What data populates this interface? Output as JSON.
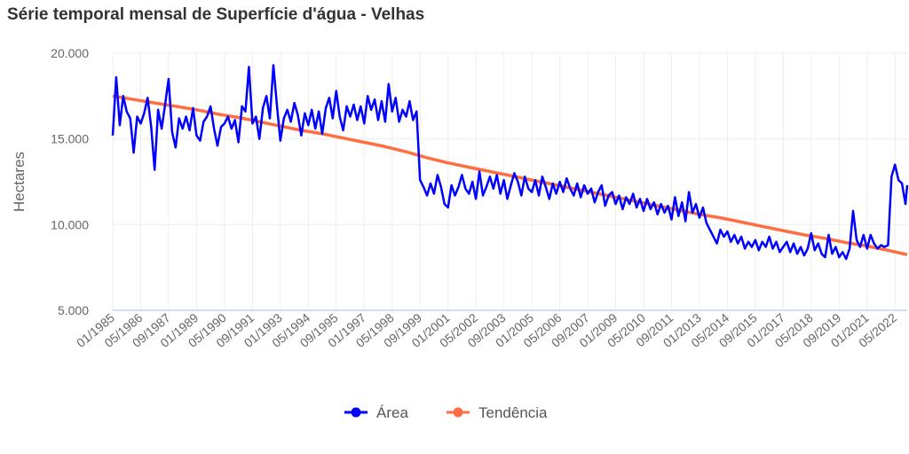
{
  "chart_data": {
    "type": "line",
    "title": "Série temporal mensal de Superfície d'água - Velhas",
    "xlabel": "",
    "ylabel": "Hectares",
    "ylim": [
      5000,
      20000
    ],
    "yticks": [
      {
        "value": 5000,
        "label": "5.000"
      },
      {
        "value": 10000,
        "label": "10.000"
      },
      {
        "value": 15000,
        "label": "15.000"
      },
      {
        "value": 20000,
        "label": "20.000"
      }
    ],
    "x_range": [
      "1985-01",
      "2022-12"
    ],
    "xtick_labels": [
      "01/1985",
      "05/1986",
      "09/1987",
      "01/1989",
      "05/1990",
      "09/1991",
      "01/1993",
      "05/1994",
      "09/1995",
      "01/1997",
      "05/1998",
      "09/1999",
      "01/2001",
      "05/2002",
      "09/2003",
      "01/2005",
      "05/2006",
      "09/2007",
      "01/2009",
      "05/2010",
      "09/2011",
      "01/2013",
      "05/2014",
      "09/2015",
      "01/2017",
      "05/2018",
      "09/2019",
      "01/2021",
      "05/2022"
    ],
    "grid": "vertical",
    "legend_position": "bottom",
    "colors": {
      "area": "#0000ff",
      "trend": "#ff6e40"
    },
    "series": [
      {
        "name": "Área",
        "color": "#0000ff",
        "points": [
          [
            "1985-01",
            15200
          ],
          [
            "1985-03",
            18600
          ],
          [
            "1985-05",
            15800
          ],
          [
            "1985-07",
            17500
          ],
          [
            "1985-09",
            16600
          ],
          [
            "1985-11",
            16200
          ],
          [
            "1986-01",
            14200
          ],
          [
            "1986-03",
            16300
          ],
          [
            "1986-05",
            15900
          ],
          [
            "1986-07",
            16500
          ],
          [
            "1986-09",
            17400
          ],
          [
            "1986-11",
            15700
          ],
          [
            "1987-01",
            13200
          ],
          [
            "1987-03",
            16700
          ],
          [
            "1987-05",
            15600
          ],
          [
            "1987-07",
            17000
          ],
          [
            "1987-09",
            18500
          ],
          [
            "1987-11",
            15400
          ],
          [
            "1988-01",
            14500
          ],
          [
            "1988-03",
            16200
          ],
          [
            "1988-05",
            15600
          ],
          [
            "1988-07",
            16300
          ],
          [
            "1988-09",
            15500
          ],
          [
            "1988-11",
            16800
          ],
          [
            "1989-01",
            15200
          ],
          [
            "1989-03",
            14900
          ],
          [
            "1989-05",
            16000
          ],
          [
            "1989-07",
            16300
          ],
          [
            "1989-09",
            16900
          ],
          [
            "1989-11",
            15600
          ],
          [
            "1990-01",
            14600
          ],
          [
            "1990-03",
            15700
          ],
          [
            "1990-05",
            15900
          ],
          [
            "1990-07",
            16300
          ],
          [
            "1990-09",
            15600
          ],
          [
            "1990-11",
            16100
          ],
          [
            "1991-01",
            14800
          ],
          [
            "1991-03",
            16900
          ],
          [
            "1991-05",
            16600
          ],
          [
            "1991-07",
            19200
          ],
          [
            "1991-09",
            15900
          ],
          [
            "1991-11",
            16300
          ],
          [
            "1992-01",
            15000
          ],
          [
            "1992-03",
            16800
          ],
          [
            "1992-05",
            17500
          ],
          [
            "1992-07",
            16200
          ],
          [
            "1992-09",
            19300
          ],
          [
            "1992-11",
            17000
          ],
          [
            "1993-01",
            14900
          ],
          [
            "1993-03",
            16200
          ],
          [
            "1993-05",
            16700
          ],
          [
            "1993-07",
            16000
          ],
          [
            "1993-09",
            17100
          ],
          [
            "1993-11",
            16400
          ],
          [
            "1994-01",
            15200
          ],
          [
            "1994-03",
            16500
          ],
          [
            "1994-05",
            15800
          ],
          [
            "1994-07",
            16700
          ],
          [
            "1994-09",
            15600
          ],
          [
            "1994-11",
            16600
          ],
          [
            "1995-01",
            15300
          ],
          [
            "1995-03",
            16800
          ],
          [
            "1995-05",
            17400
          ],
          [
            "1995-07",
            16200
          ],
          [
            "1995-09",
            17800
          ],
          [
            "1995-11",
            16300
          ],
          [
            "1996-01",
            15500
          ],
          [
            "1996-03",
            16900
          ],
          [
            "1996-05",
            16300
          ],
          [
            "1996-07",
            17000
          ],
          [
            "1996-09",
            16100
          ],
          [
            "1996-11",
            16900
          ],
          [
            "1997-01",
            15900
          ],
          [
            "1997-03",
            17500
          ],
          [
            "1997-05",
            16700
          ],
          [
            "1997-07",
            17300
          ],
          [
            "1997-09",
            16100
          ],
          [
            "1997-11",
            17200
          ],
          [
            "1998-01",
            16000
          ],
          [
            "1998-03",
            18200
          ],
          [
            "1998-05",
            16600
          ],
          [
            "1998-07",
            17400
          ],
          [
            "1998-09",
            16000
          ],
          [
            "1998-11",
            16700
          ],
          [
            "1999-01",
            16300
          ],
          [
            "1999-03",
            17200
          ],
          [
            "1999-05",
            16100
          ],
          [
            "1999-07",
            16600
          ],
          [
            "1999-09",
            12600
          ],
          [
            "1999-11",
            12200
          ],
          [
            "2000-01",
            11700
          ],
          [
            "2000-03",
            12400
          ],
          [
            "2000-05",
            11800
          ],
          [
            "2000-07",
            12900
          ],
          [
            "2000-09",
            12200
          ],
          [
            "2000-11",
            11200
          ],
          [
            "2001-01",
            11000
          ],
          [
            "2001-03",
            12300
          ],
          [
            "2001-05",
            11700
          ],
          [
            "2001-07",
            12200
          ],
          [
            "2001-09",
            12900
          ],
          [
            "2001-11",
            12100
          ],
          [
            "2002-01",
            11800
          ],
          [
            "2002-03",
            12500
          ],
          [
            "2002-05",
            11500
          ],
          [
            "2002-07",
            13100
          ],
          [
            "2002-09",
            11700
          ],
          [
            "2002-11",
            12200
          ],
          [
            "2003-01",
            12800
          ],
          [
            "2003-03",
            12100
          ],
          [
            "2003-05",
            12900
          ],
          [
            "2003-07",
            11800
          ],
          [
            "2003-09",
            12600
          ],
          [
            "2003-11",
            11500
          ],
          [
            "2004-01",
            12300
          ],
          [
            "2004-03",
            13000
          ],
          [
            "2004-05",
            12500
          ],
          [
            "2004-07",
            11700
          ],
          [
            "2004-09",
            12800
          ],
          [
            "2004-11",
            12100
          ],
          [
            "2005-01",
            11900
          ],
          [
            "2005-03",
            12600
          ],
          [
            "2005-05",
            11700
          ],
          [
            "2005-07",
            12800
          ],
          [
            "2005-09",
            12200
          ],
          [
            "2005-11",
            11500
          ],
          [
            "2006-01",
            12400
          ],
          [
            "2006-03",
            11800
          ],
          [
            "2006-05",
            12500
          ],
          [
            "2006-07",
            11900
          ],
          [
            "2006-09",
            12700
          ],
          [
            "2006-11",
            12100
          ],
          [
            "2007-01",
            11700
          ],
          [
            "2007-03",
            12400
          ],
          [
            "2007-05",
            11600
          ],
          [
            "2007-07",
            12300
          ],
          [
            "2007-09",
            11800
          ],
          [
            "2007-11",
            12100
          ],
          [
            "2008-01",
            11300
          ],
          [
            "2008-03",
            11900
          ],
          [
            "2008-05",
            12300
          ],
          [
            "2008-07",
            11100
          ],
          [
            "2008-09",
            11700
          ],
          [
            "2008-11",
            11900
          ],
          [
            "2009-01",
            11200
          ],
          [
            "2009-03",
            11700
          ],
          [
            "2009-05",
            10900
          ],
          [
            "2009-07",
            11600
          ],
          [
            "2009-09",
            11200
          ],
          [
            "2009-11",
            11800
          ],
          [
            "2010-01",
            11000
          ],
          [
            "2010-03",
            11500
          ],
          [
            "2010-05",
            10800
          ],
          [
            "2010-07",
            11500
          ],
          [
            "2010-09",
            10900
          ],
          [
            "2010-11",
            11300
          ],
          [
            "2011-01",
            10600
          ],
          [
            "2011-03",
            11200
          ],
          [
            "2011-05",
            10700
          ],
          [
            "2011-07",
            11100
          ],
          [
            "2011-09",
            10300
          ],
          [
            "2011-11",
            11600
          ],
          [
            "2012-01",
            10500
          ],
          [
            "2012-03",
            11300
          ],
          [
            "2012-05",
            10200
          ],
          [
            "2012-07",
            11900
          ],
          [
            "2012-09",
            10700
          ],
          [
            "2012-11",
            11200
          ],
          [
            "2013-01",
            10400
          ],
          [
            "2013-03",
            11000
          ],
          [
            "2013-05",
            10100
          ],
          [
            "2013-07",
            9700
          ],
          [
            "2013-09",
            9300
          ],
          [
            "2013-11",
            8900
          ],
          [
            "2014-01",
            9700
          ],
          [
            "2014-03",
            9300
          ],
          [
            "2014-05",
            9600
          ],
          [
            "2014-07",
            9000
          ],
          [
            "2014-09",
            9400
          ],
          [
            "2014-11",
            8900
          ],
          [
            "2015-01",
            9300
          ],
          [
            "2015-03",
            8600
          ],
          [
            "2015-05",
            9000
          ],
          [
            "2015-07",
            8700
          ],
          [
            "2015-09",
            9100
          ],
          [
            "2015-11",
            8500
          ],
          [
            "2016-01",
            9000
          ],
          [
            "2016-03",
            8700
          ],
          [
            "2016-05",
            9300
          ],
          [
            "2016-07",
            8600
          ],
          [
            "2016-09",
            9000
          ],
          [
            "2016-11",
            8400
          ],
          [
            "2017-01",
            8700
          ],
          [
            "2017-03",
            9000
          ],
          [
            "2017-05",
            8400
          ],
          [
            "2017-07",
            8900
          ],
          [
            "2017-09",
            8300
          ],
          [
            "2017-11",
            8700
          ],
          [
            "2018-01",
            8200
          ],
          [
            "2018-03",
            8600
          ],
          [
            "2018-05",
            9500
          ],
          [
            "2018-07",
            8500
          ],
          [
            "2018-09",
            8900
          ],
          [
            "2018-11",
            8300
          ],
          [
            "2019-01",
            8100
          ],
          [
            "2019-03",
            9400
          ],
          [
            "2019-05",
            8300
          ],
          [
            "2019-07",
            8700
          ],
          [
            "2019-09",
            8100
          ],
          [
            "2019-11",
            8400
          ],
          [
            "2020-01",
            8000
          ],
          [
            "2020-03",
            8600
          ],
          [
            "2020-05",
            10800
          ],
          [
            "2020-07",
            9100
          ],
          [
            "2020-09",
            8700
          ],
          [
            "2020-11",
            9400
          ],
          [
            "2021-01",
            8600
          ],
          [
            "2021-03",
            9400
          ],
          [
            "2021-05",
            8900
          ],
          [
            "2021-07",
            8600
          ],
          [
            "2021-09",
            8800
          ],
          [
            "2021-11",
            8700
          ],
          [
            "2022-01",
            8800
          ],
          [
            "2022-03",
            12800
          ],
          [
            "2022-05",
            13500
          ],
          [
            "2022-07",
            12600
          ],
          [
            "2022-09",
            12400
          ],
          [
            "2022-11",
            11200
          ],
          [
            "2022-12",
            12300
          ]
        ]
      },
      {
        "name": "Tendência",
        "color": "#ff6e40",
        "points": [
          [
            "1985-01",
            17500
          ],
          [
            "1986-01",
            17300
          ],
          [
            "1987-01",
            17100
          ],
          [
            "1988-01",
            16900
          ],
          [
            "1989-01",
            16700
          ],
          [
            "1990-01",
            16450
          ],
          [
            "1991-01",
            16250
          ],
          [
            "1992-01",
            16000
          ],
          [
            "1993-01",
            15750
          ],
          [
            "1994-01",
            15500
          ],
          [
            "1995-01",
            15300
          ],
          [
            "1996-01",
            15050
          ],
          [
            "1997-01",
            14800
          ],
          [
            "1998-01",
            14550
          ],
          [
            "1999-01",
            14250
          ],
          [
            "2000-01",
            13900
          ],
          [
            "2001-01",
            13600
          ],
          [
            "2002-01",
            13350
          ],
          [
            "2003-01",
            13100
          ],
          [
            "2004-01",
            12850
          ],
          [
            "2005-01",
            12600
          ],
          [
            "2006-01",
            12350
          ],
          [
            "2007-01",
            12100
          ],
          [
            "2008-01",
            11850
          ],
          [
            "2009-01",
            11600
          ],
          [
            "2010-01",
            11350
          ],
          [
            "2011-01",
            11100
          ],
          [
            "2012-01",
            10850
          ],
          [
            "2013-01",
            10600
          ],
          [
            "2014-01",
            10400
          ],
          [
            "2015-01",
            10150
          ],
          [
            "2016-01",
            9900
          ],
          [
            "2017-01",
            9650
          ],
          [
            "2018-01",
            9400
          ],
          [
            "2019-01",
            9200
          ],
          [
            "2020-01",
            8950
          ],
          [
            "2021-01",
            8750
          ],
          [
            "2022-01",
            8500
          ],
          [
            "2022-12",
            8250
          ]
        ]
      }
    ]
  }
}
